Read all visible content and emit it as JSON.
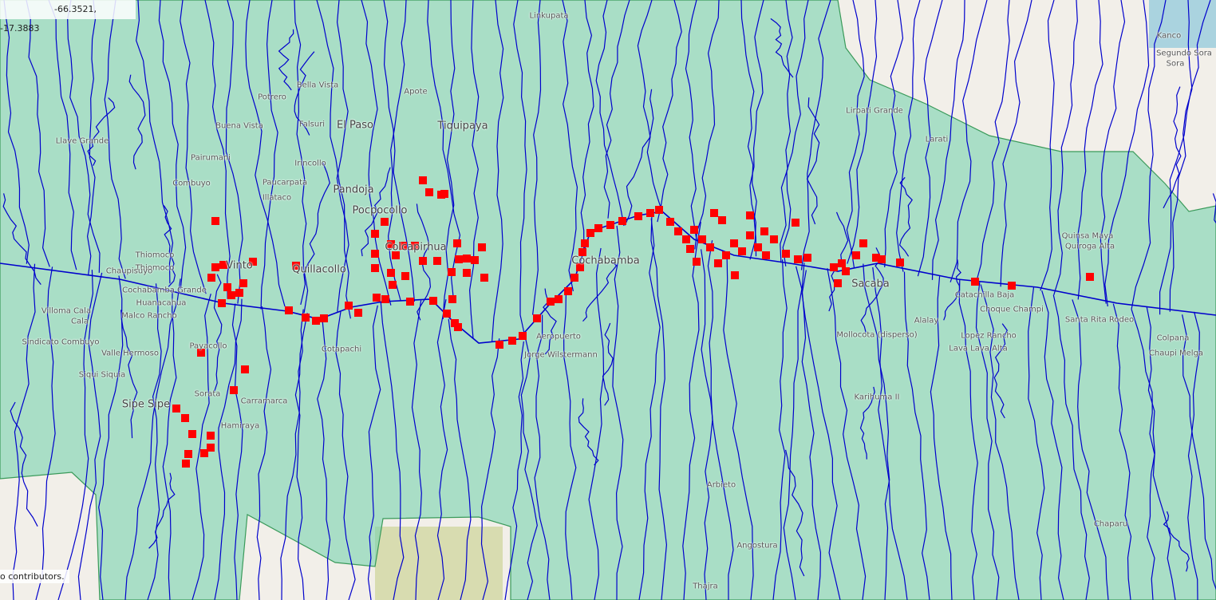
{
  "coordinates": "-66.3521, -17.3883",
  "attribution": "o contributors.",
  "places": [
    "Linkupata",
    "Kanco",
    "Segundo Sora",
    "Sora",
    "Bella Vista",
    "Potrero",
    "Apote",
    "Falsuri",
    "El Paso",
    "Tiquipaya",
    "Llave Grande",
    "Buena Vista",
    "Pairumani",
    "Combuyo",
    "Irincollo",
    "Paucarpata",
    "Illataco",
    "Pandoja",
    "Pocpocollo",
    "Colcapirhua",
    "Thiomoco",
    "Vinto",
    "Quillacollo",
    "Cochabamba",
    "Sacaba",
    "Catachilla Baja",
    "Choque Champi",
    "Quinsa Maya",
    "Quiroga Alta",
    "Santa Rita Rodeo",
    "Alalay",
    "Mollocota (disperso)",
    "Lopez Rancho",
    "Lava Lava Alta",
    "Colpana",
    "Chaupi Melga",
    "Karihuma II",
    "Cotapachi",
    "Carramarca",
    "Sorata",
    "Sipe Sipe",
    "Valle Hermoso",
    "Siqui Siquia",
    "Sindicato Combuyo",
    "Villoma Cala",
    "Cala",
    "Payacollo",
    "Hamiraya",
    "Larati",
    "Lirpati Grande",
    "Arbieto",
    "Angostura",
    "Thajra",
    "Chaparu",
    "Aeropuerto",
    "Jorge Wilstermann",
    "Cochabamba Grande",
    "Huanacahua",
    "Malco Rancho",
    "Thiomoco",
    "Chaupisuyo"
  ]
}
